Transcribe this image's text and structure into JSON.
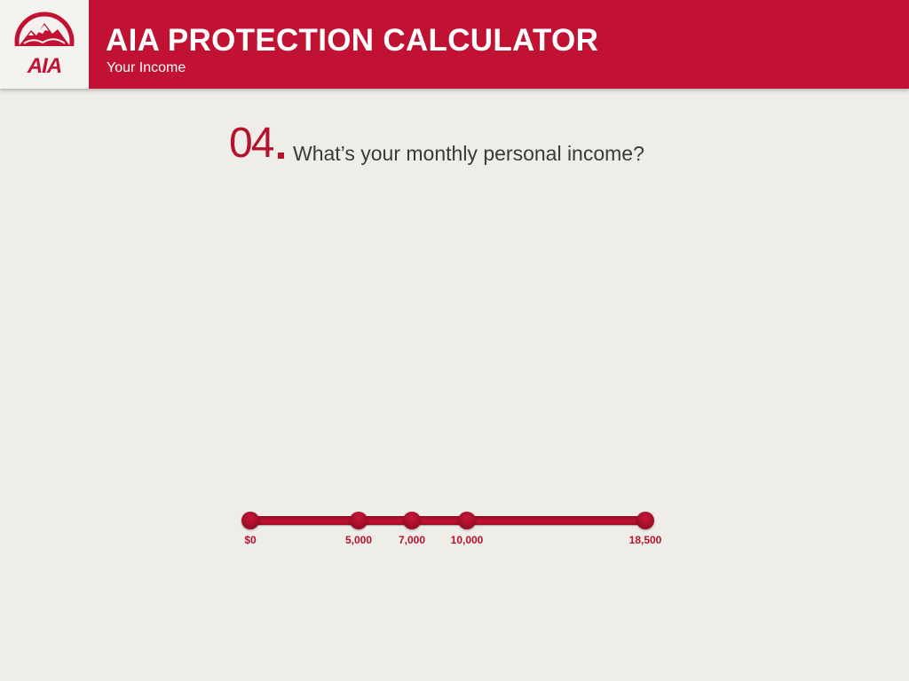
{
  "header": {
    "title": "AIA PROTECTION CALCULATOR",
    "subtitle": "Your Income",
    "brand_color": "#c11233"
  },
  "logo": {
    "icon": "aia-logo-icon",
    "text": "AIA"
  },
  "question": {
    "number": "04",
    "text": "What’s your monthly personal income?"
  },
  "income_slider": {
    "stops": [
      {
        "label": "$0",
        "value": 0
      },
      {
        "label": "5,000",
        "value": 5000
      },
      {
        "label": "7,000",
        "value": 7000
      },
      {
        "label": "10,000",
        "value": 10000
      },
      {
        "label": "18,500",
        "value": 18500
      }
    ],
    "min": 0,
    "max": 18500,
    "accent_color": "#b5122e"
  }
}
